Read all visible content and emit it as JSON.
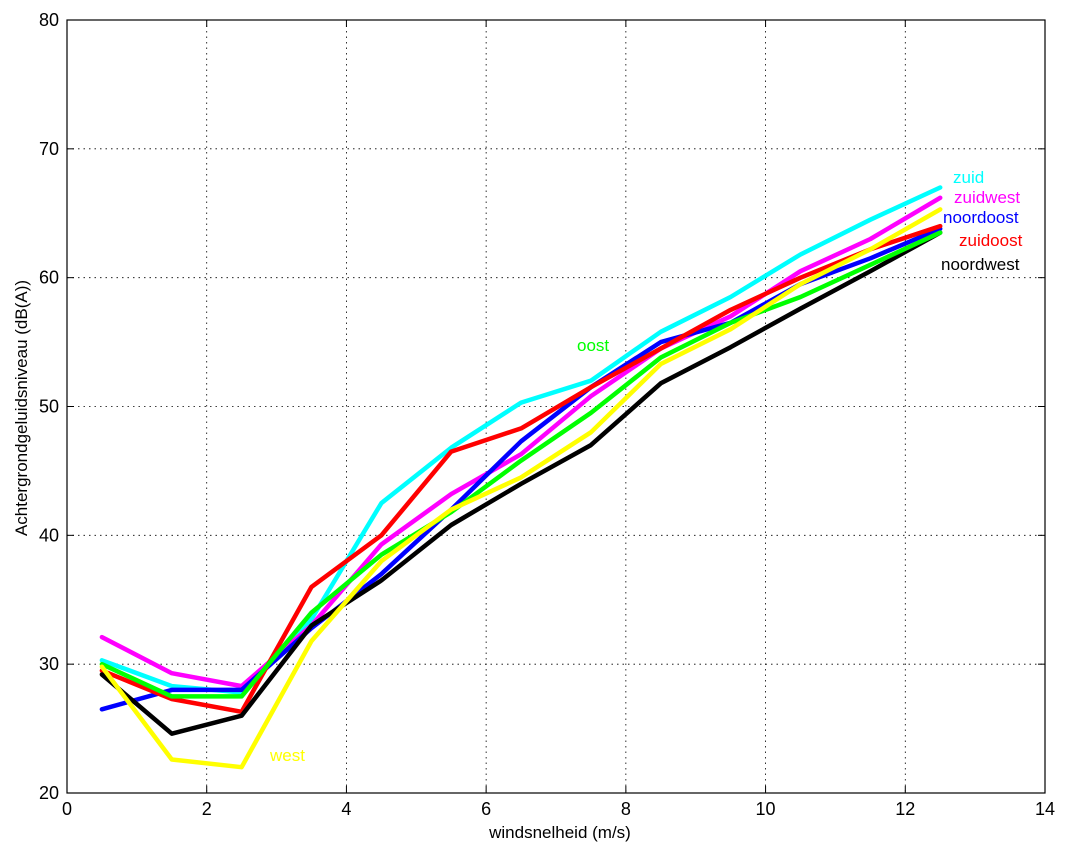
{
  "chart_data": {
    "type": "line",
    "title": "",
    "xlabel": "windsnelheid (m/s)",
    "ylabel": "Achtergrondgeluidsniveau (dB(A))",
    "xlim": [
      0,
      14
    ],
    "ylim": [
      20,
      80
    ],
    "xticks": [
      0,
      2,
      4,
      6,
      8,
      10,
      12,
      14
    ],
    "yticks": [
      20,
      30,
      40,
      50,
      60,
      70,
      80
    ],
    "grid": true,
    "legend": "inline labels at line ends",
    "x": [
      0.5,
      1.5,
      2.5,
      3.5,
      4.5,
      5.5,
      6.5,
      7.5,
      8.5,
      9.5,
      10.5,
      11.5,
      12.5
    ],
    "series": [
      {
        "name": "zuid",
        "color": "#00ffff",
        "values": [
          30.3,
          28.3,
          27.8,
          33.5,
          42.5,
          46.8,
          50.3,
          52.0,
          55.8,
          58.5,
          61.8,
          64.5,
          67.0
        ]
      },
      {
        "name": "zuidwest",
        "color": "#ff00ff",
        "values": [
          32.1,
          29.3,
          28.3,
          33.0,
          39.3,
          43.2,
          46.3,
          50.8,
          54.5,
          57.0,
          60.5,
          63.0,
          66.2
        ]
      },
      {
        "name": "noordoost",
        "color": "#0000ff",
        "values": [
          26.5,
          28.0,
          28.0,
          32.8,
          37.0,
          42.0,
          47.3,
          51.5,
          55.0,
          56.5,
          59.5,
          61.5,
          63.8
        ]
      },
      {
        "name": "zuidoost",
        "color": "#ff0000",
        "values": [
          29.5,
          27.3,
          26.3,
          36.0,
          40.0,
          46.5,
          48.3,
          51.5,
          54.5,
          57.5,
          60.0,
          62.2,
          64.0
        ]
      },
      {
        "name": "noordwest",
        "color": "#000000",
        "values": [
          29.2,
          24.6,
          26.0,
          33.0,
          36.5,
          40.8,
          44.0,
          47.0,
          51.8,
          54.6,
          57.6,
          60.5,
          63.5
        ]
      },
      {
        "name": "oost",
        "color": "#00ff00",
        "values": [
          30.0,
          27.5,
          27.5,
          34.0,
          38.5,
          41.8,
          45.8,
          49.5,
          53.8,
          56.5,
          58.5,
          61.0,
          63.5
        ]
      },
      {
        "name": "west",
        "color": "#ffff00",
        "values": [
          29.8,
          22.6,
          22.0,
          31.8,
          38.0,
          42.0,
          44.5,
          48.0,
          53.3,
          56.0,
          59.5,
          62.2,
          65.3
        ]
      }
    ]
  }
}
